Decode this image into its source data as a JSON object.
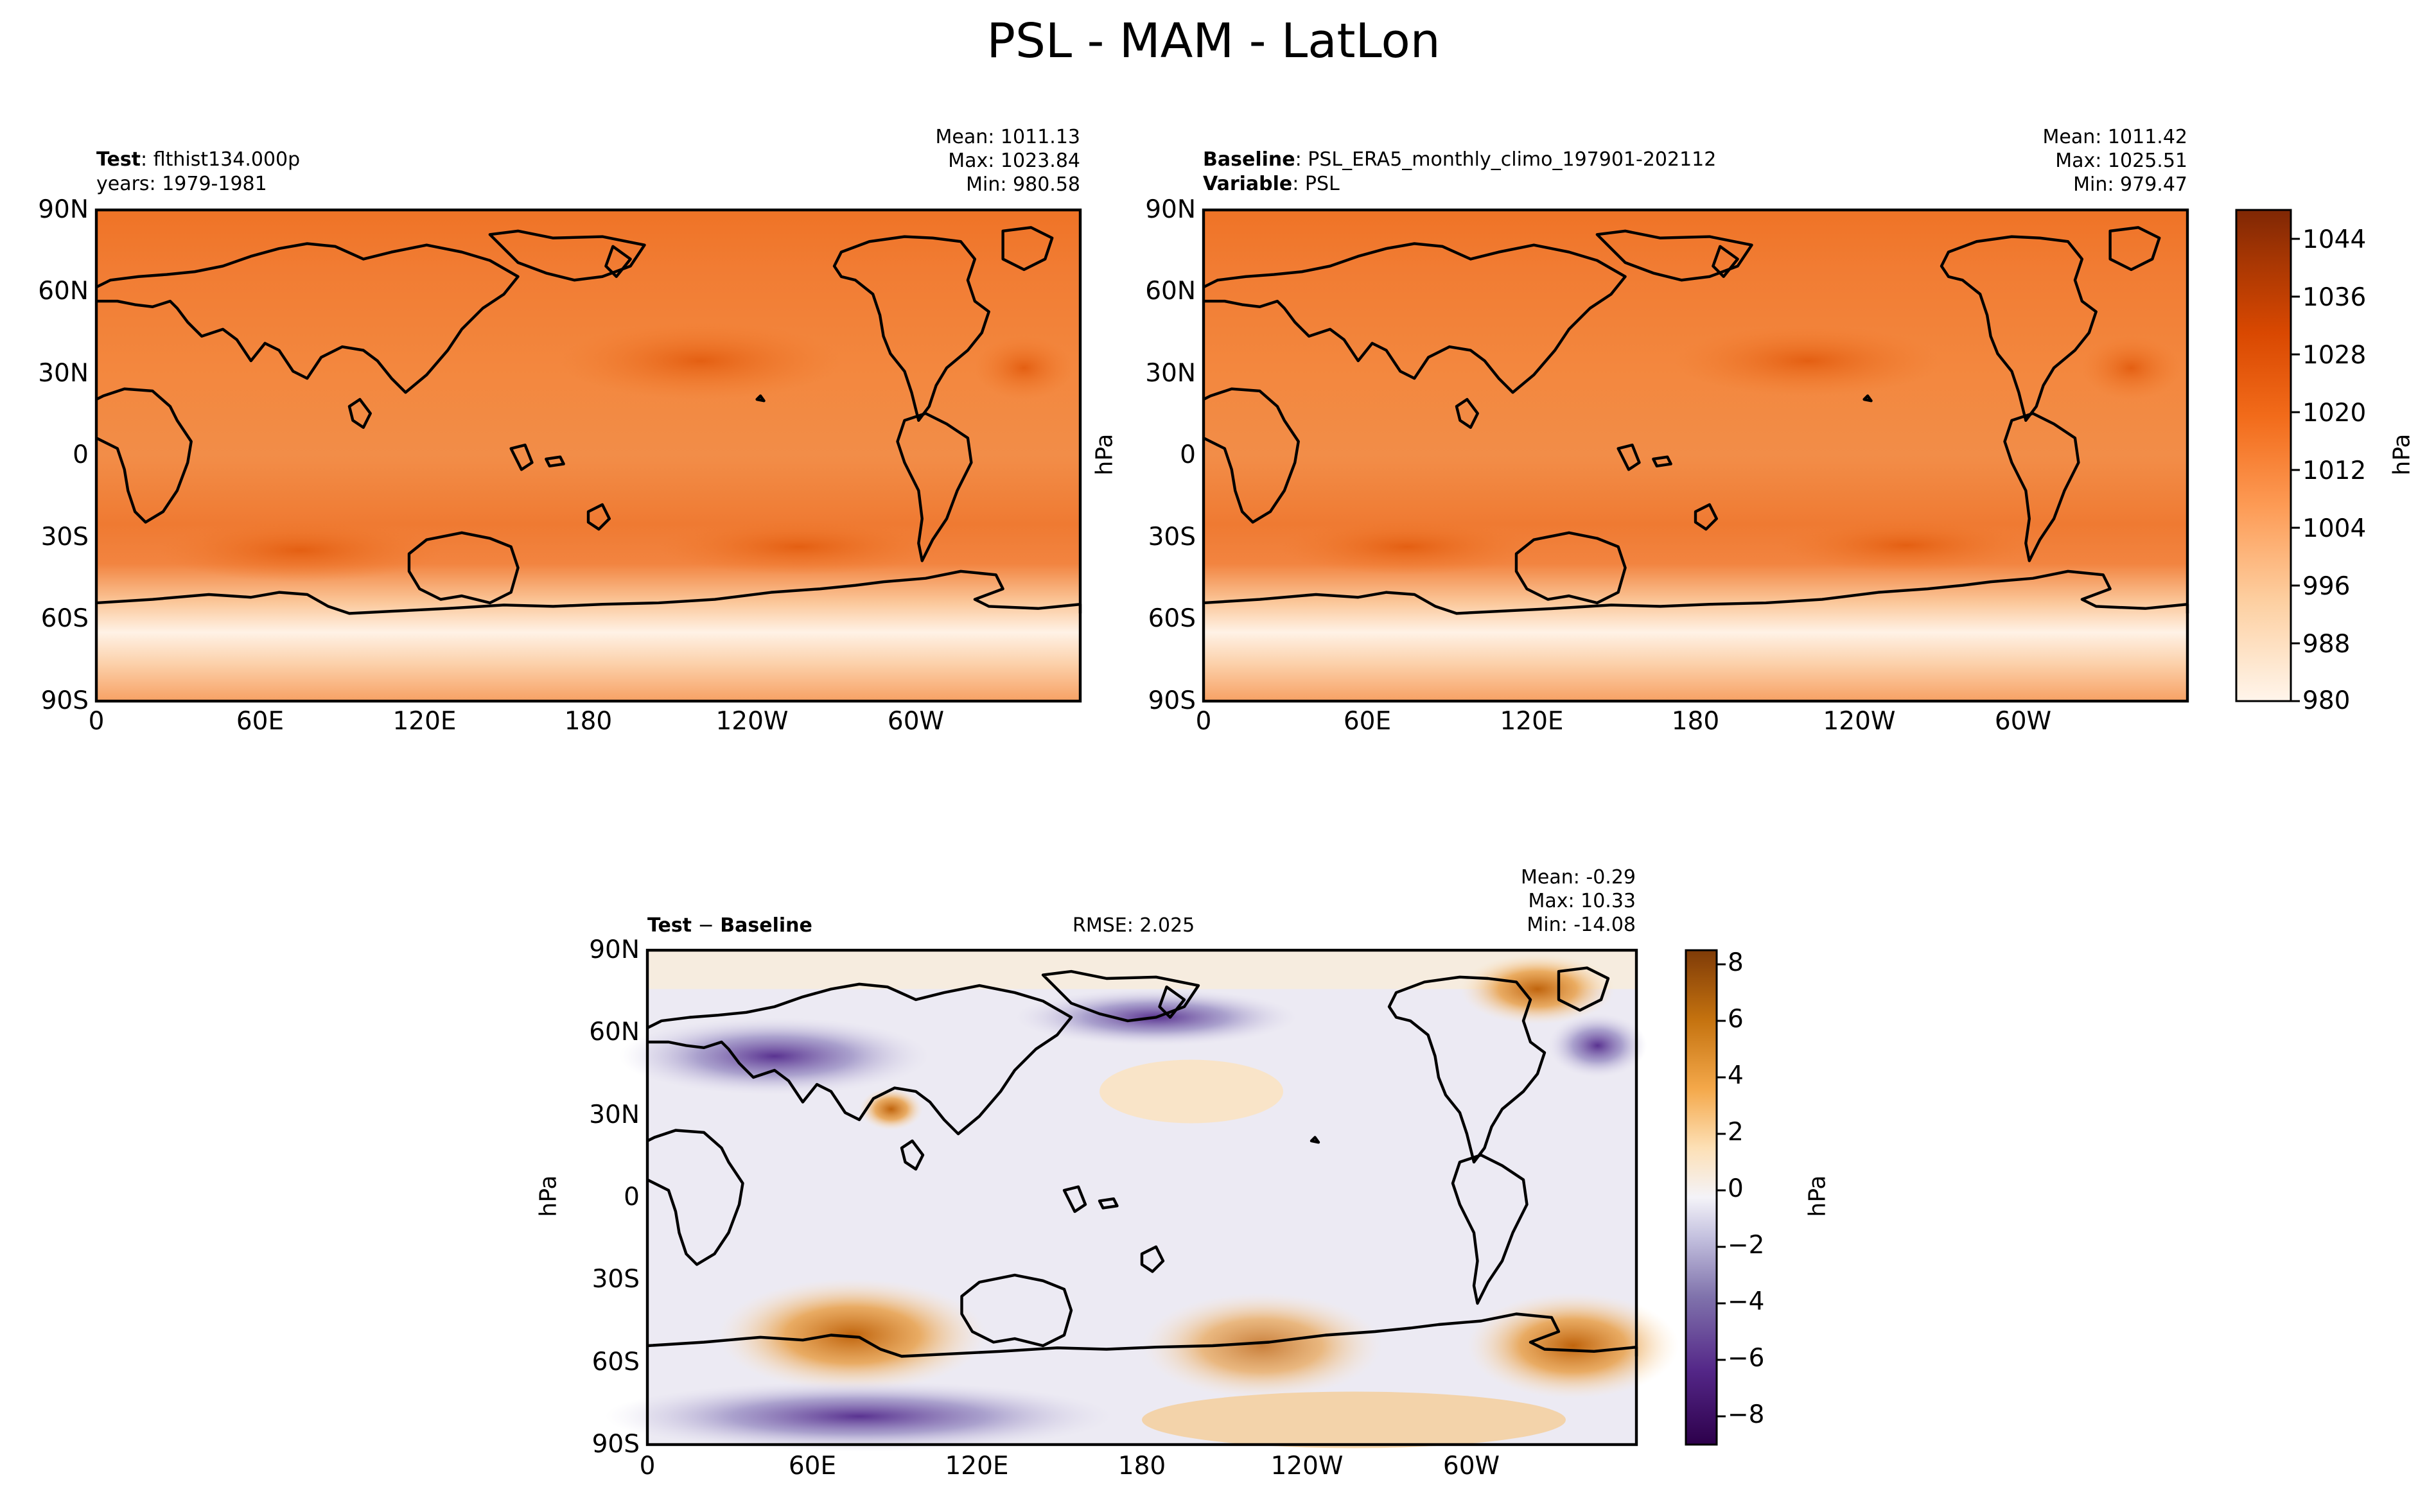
{
  "figure": {
    "title": "PSL - MAM - LatLon"
  },
  "colors": {
    "ocean_orange": "#f0782f",
    "subtropical_high": "#ea6419",
    "antarctic_light": "#fde3cc",
    "coastline": "#000000",
    "diff_neutral": "#eceaf3",
    "diff_positive": "#d98716",
    "diff_negative": "#5c3494"
  },
  "panels": {
    "test": {
      "label_bold": "Test",
      "label_text": "flthist134.000p",
      "years_text": "years: 1979-1981",
      "mean_text": "Mean: 1011.13",
      "max_text": "Max: 1023.84",
      "min_text": "Min: 980.58"
    },
    "baseline": {
      "label_bold": "Baseline",
      "label_text": "PSL_ERA5_monthly_climo_197901-202112",
      "variable_bold": "Variable",
      "variable_text": "PSL",
      "ylabel": "hPa",
      "mean_text": "Mean: 1011.42",
      "max_text": "Max: 1025.51",
      "min_text": "Min: 979.47"
    },
    "diff": {
      "label_bold": "Test",
      "label_minus": " − ",
      "label_bold2": "Baseline",
      "rmse_text": "RMSE: 2.025",
      "ylabel": "hPa",
      "mean_text": "Mean: -0.29",
      "max_text": "Max: 10.33",
      "min_text": "Min: -14.08"
    }
  },
  "axes": {
    "lon_ticks": [
      "0",
      "60E",
      "120E",
      "180",
      "120W",
      "60W"
    ],
    "lat_ticks": [
      "90N",
      "60N",
      "30N",
      "0",
      "30S",
      "60S",
      "90S"
    ]
  },
  "colorbars": {
    "psl": {
      "label": "hPa",
      "range": [
        980,
        1048
      ],
      "ticks": [
        "1044",
        "1036",
        "1028",
        "1020",
        "1012",
        "1004",
        "996",
        "988",
        "980"
      ]
    },
    "diff": {
      "label": "hPa",
      "range": [
        -9,
        8.5
      ],
      "ticks": [
        "8",
        "6",
        "4",
        "2",
        "0",
        "−2",
        "−4",
        "−6",
        "−8"
      ]
    }
  },
  "chart_data": [
    {
      "type": "heatmap",
      "title": "Test: flthist134.000p",
      "projection": "latlon",
      "units": "hPa",
      "x_ticks": [
        "0",
        "60E",
        "120E",
        "180",
        "120W",
        "60W"
      ],
      "y_ticks": [
        "90N",
        "60N",
        "30N",
        "0",
        "30S",
        "60S",
        "90S"
      ],
      "stats": {
        "mean": 1011.13,
        "max": 1023.84,
        "min": 980.58
      },
      "colorbar_range": [
        980,
        1048
      ]
    },
    {
      "type": "heatmap",
      "title": "Baseline: PSL_ERA5_monthly_climo_197901-202112",
      "projection": "latlon",
      "units": "hPa",
      "x_ticks": [
        "0",
        "60E",
        "120E",
        "180",
        "120W",
        "60W"
      ],
      "y_ticks": [
        "90N",
        "60N",
        "30N",
        "0",
        "30S",
        "60S",
        "90S"
      ],
      "stats": {
        "mean": 1011.42,
        "max": 1025.51,
        "min": 979.47
      },
      "colorbar_range": [
        980,
        1048
      ]
    },
    {
      "type": "heatmap",
      "title": "Test − Baseline",
      "projection": "latlon",
      "units": "hPa",
      "x_ticks": [
        "0",
        "60E",
        "120E",
        "180",
        "120W",
        "60W"
      ],
      "y_ticks": [
        "90N",
        "60N",
        "30N",
        "0",
        "30S",
        "60S",
        "90S"
      ],
      "stats": {
        "mean": -0.29,
        "max": 10.33,
        "min": -14.08,
        "rmse": 2.025
      },
      "colorbar_range": [
        -9,
        8.5
      ]
    }
  ]
}
